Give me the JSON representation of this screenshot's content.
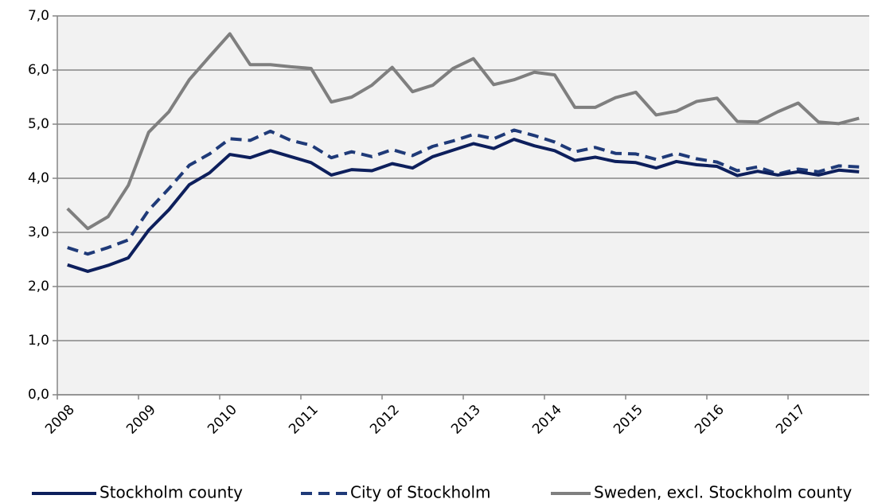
{
  "chart_data": {
    "type": "line",
    "categories": [
      "2008",
      null,
      null,
      null,
      "2009",
      null,
      null,
      null,
      "2010",
      null,
      null,
      null,
      "2011",
      null,
      null,
      null,
      "2012",
      null,
      null,
      null,
      "2013",
      null,
      null,
      null,
      "2014",
      null,
      null,
      null,
      "2015",
      null,
      null,
      null,
      "2016",
      null,
      null,
      null,
      "2017",
      null,
      null,
      null
    ],
    "series": [
      {
        "name": "Stockholm county",
        "color": "#0d1f5c",
        "dash": "solid",
        "values": [
          2.4,
          2.28,
          2.39,
          2.53,
          3.04,
          3.42,
          3.88,
          4.1,
          4.44,
          4.38,
          4.51,
          4.4,
          4.29,
          4.06,
          4.16,
          4.14,
          4.27,
          4.19,
          4.4,
          4.52,
          4.64,
          4.55,
          4.72,
          4.6,
          4.51,
          4.33,
          4.39,
          4.31,
          4.29,
          4.19,
          4.31,
          4.25,
          4.22,
          4.05,
          4.13,
          4.06,
          4.12,
          4.06,
          4.15,
          4.12
        ]
      },
      {
        "name": "City of Stockholm",
        "color": "#1f3a78",
        "dash": "dashed",
        "values": [
          2.72,
          2.6,
          2.72,
          2.86,
          3.41,
          3.81,
          4.24,
          4.45,
          4.73,
          4.7,
          4.87,
          4.7,
          4.61,
          4.38,
          4.49,
          4.4,
          4.53,
          4.42,
          4.59,
          4.69,
          4.81,
          4.73,
          4.89,
          4.79,
          4.67,
          4.49,
          4.57,
          4.46,
          4.45,
          4.35,
          4.46,
          4.36,
          4.3,
          4.14,
          4.21,
          4.08,
          4.17,
          4.12,
          4.23,
          4.21
        ]
      },
      {
        "name": "Sweden, excl. Stockholm county",
        "color": "#7f7f7f",
        "dash": "solid",
        "values": [
          3.44,
          3.07,
          3.29,
          3.87,
          4.85,
          5.23,
          5.82,
          6.25,
          6.67,
          6.1,
          6.1,
          6.06,
          6.03,
          5.41,
          5.5,
          5.72,
          6.05,
          5.6,
          5.72,
          6.03,
          6.21,
          5.73,
          5.82,
          5.96,
          5.91,
          5.31,
          5.31,
          5.49,
          5.59,
          5.17,
          5.24,
          5.42,
          5.48,
          5.05,
          5.04,
          5.23,
          5.39,
          5.04,
          5.01,
          5.11
        ]
      }
    ],
    "ylim": [
      0,
      7
    ],
    "yticks": [
      {
        "value": 0,
        "label": "0,0"
      },
      {
        "value": 1,
        "label": "1,0"
      },
      {
        "value": 2,
        "label": "2,0"
      },
      {
        "value": 3,
        "label": "3,0"
      },
      {
        "value": 4,
        "label": "4,0"
      },
      {
        "value": 5,
        "label": "5,0"
      },
      {
        "value": 6,
        "label": "6,0"
      },
      {
        "value": 7,
        "label": "7,0"
      }
    ],
    "grid": true,
    "legend": "bottom"
  }
}
